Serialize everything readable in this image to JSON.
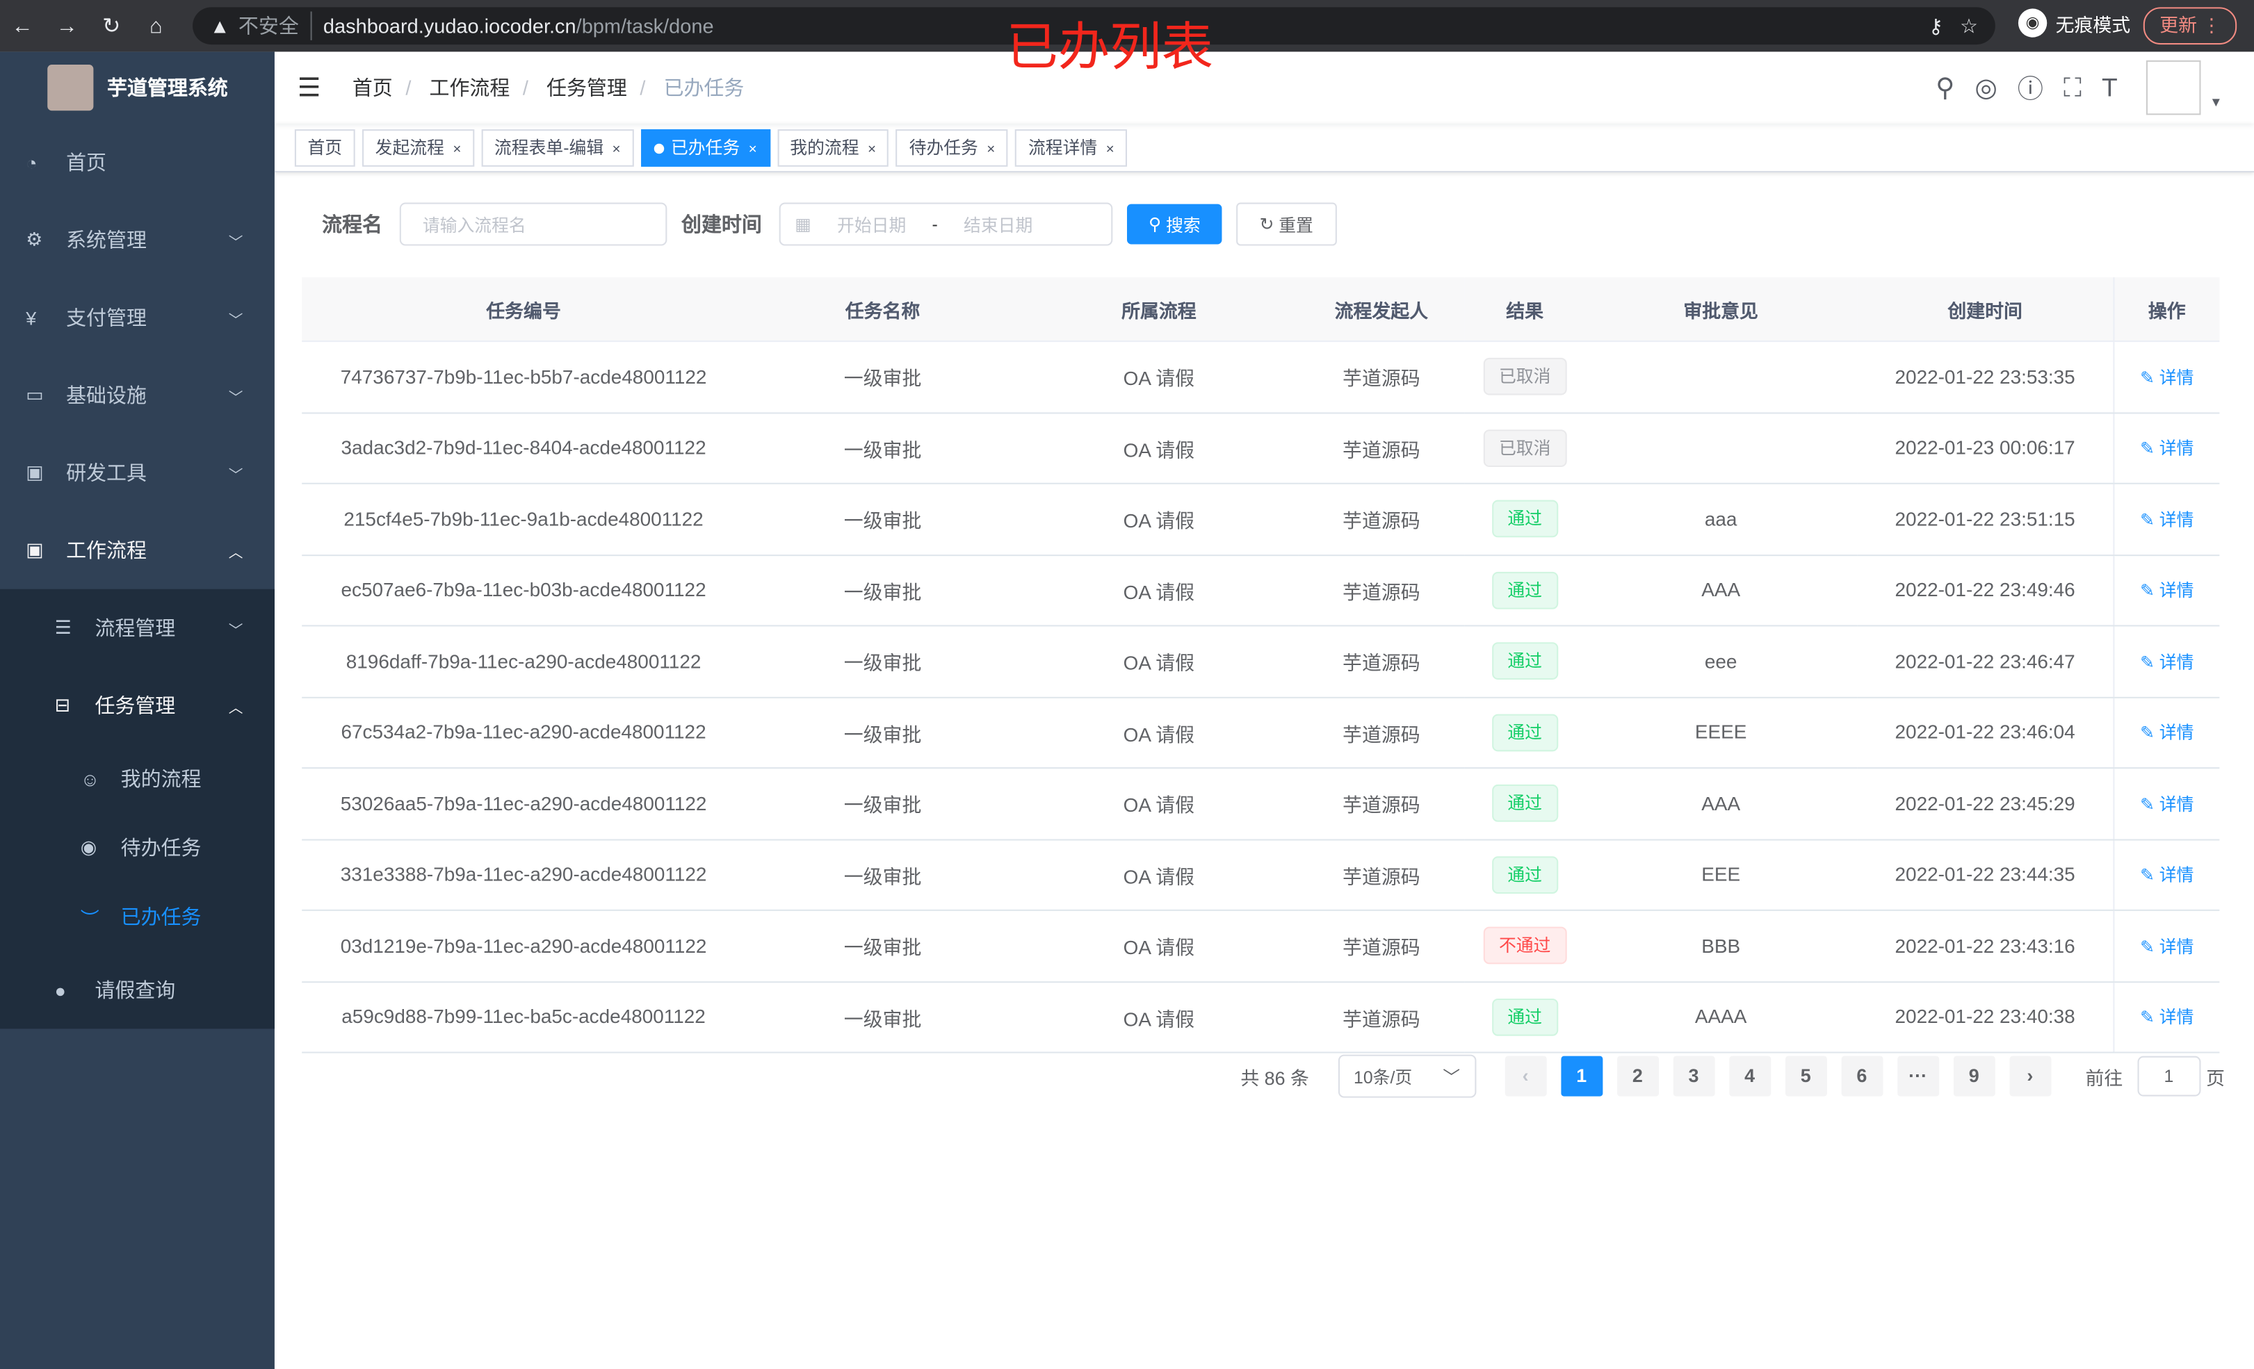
{
  "browser": {
    "insecure": "不安全",
    "url_host": "dashboard.yudao.iocoder.cn",
    "url_path": "/bpm/task/done",
    "incognito": "无痕模式",
    "update": "更新"
  },
  "overlay_title": "已办列表",
  "sidebar": {
    "title": "芋道管理系统",
    "items": [
      {
        "label": "首页"
      },
      {
        "label": "系统管理"
      },
      {
        "label": "支付管理"
      },
      {
        "label": "基础设施"
      },
      {
        "label": "研发工具"
      },
      {
        "label": "工作流程"
      }
    ],
    "sub": [
      {
        "label": "流程管理"
      },
      {
        "label": "任务管理"
      }
    ],
    "sub2": [
      {
        "label": "我的流程"
      },
      {
        "label": "待办任务"
      },
      {
        "label": "已办任务"
      }
    ],
    "leave": "请假查询"
  },
  "breadcrumb": [
    "首页",
    "工作流程",
    "任务管理",
    "已办任务"
  ],
  "tags": [
    "首页",
    "发起流程",
    "流程表单-编辑",
    "已办任务",
    "我的流程",
    "待办任务",
    "流程详情"
  ],
  "filter": {
    "name_label": "流程名",
    "name_placeholder": "请输入流程名",
    "time_label": "创建时间",
    "start_placeholder": "开始日期",
    "sep": "-",
    "end_placeholder": "结束日期",
    "search": "搜索",
    "reset": "重置"
  },
  "table": {
    "headers": [
      "任务编号",
      "任务名称",
      "所属流程",
      "流程发起人",
      "结果",
      "审批意见",
      "创建时间",
      "操作"
    ],
    "rows": [
      [
        "74736737-7b9b-11ec-b5b7-acde48001122",
        "一级审批",
        "OA 请假",
        "芋道源码",
        "已取消",
        "",
        "2022-01-22 23:53:35",
        "详情"
      ],
      [
        "3adac3d2-7b9d-11ec-8404-acde48001122",
        "一级审批",
        "OA 请假",
        "芋道源码",
        "已取消",
        "",
        "2022-01-23 00:06:17",
        "详情"
      ],
      [
        "215cf4e5-7b9b-11ec-9a1b-acde48001122",
        "一级审批",
        "OA 请假",
        "芋道源码",
        "通过",
        "aaa",
        "2022-01-22 23:51:15",
        "详情"
      ],
      [
        "ec507ae6-7b9a-11ec-b03b-acde48001122",
        "一级审批",
        "OA 请假",
        "芋道源码",
        "通过",
        "AAA",
        "2022-01-22 23:49:46",
        "详情"
      ],
      [
        "8196daff-7b9a-11ec-a290-acde48001122",
        "一级审批",
        "OA 请假",
        "芋道源码",
        "通过",
        "eee",
        "2022-01-22 23:46:47",
        "详情"
      ],
      [
        "67c534a2-7b9a-11ec-a290-acde48001122",
        "一级审批",
        "OA 请假",
        "芋道源码",
        "通过",
        "EEEE",
        "2022-01-22 23:46:04",
        "详情"
      ],
      [
        "53026aa5-7b9a-11ec-a290-acde48001122",
        "一级审批",
        "OA 请假",
        "芋道源码",
        "通过",
        "AAA",
        "2022-01-22 23:45:29",
        "详情"
      ],
      [
        "331e3388-7b9a-11ec-a290-acde48001122",
        "一级审批",
        "OA 请假",
        "芋道源码",
        "通过",
        "EEE",
        "2022-01-22 23:44:35",
        "详情"
      ],
      [
        "03d1219e-7b9a-11ec-a290-acde48001122",
        "一级审批",
        "OA 请假",
        "芋道源码",
        "不通过",
        "BBB",
        "2022-01-22 23:43:16",
        "详情"
      ],
      [
        "a59c9d88-7b99-11ec-ba5c-acde48001122",
        "一级审批",
        "OA 请假",
        "芋道源码",
        "通过",
        "AAAA",
        "2022-01-22 23:40:38",
        "详情"
      ]
    ]
  },
  "badge_colors": {
    "已取消": "#909399",
    "通过": "#13ce66",
    "不通过": "#ff4949"
  },
  "pagination": {
    "total": "共 86 条",
    "size": "10条/页",
    "pages": [
      "1",
      "2",
      "3",
      "4",
      "5",
      "6",
      "···",
      "9"
    ],
    "current": "1",
    "goto": "前往",
    "goto_value": "1",
    "page_unit": "页"
  }
}
